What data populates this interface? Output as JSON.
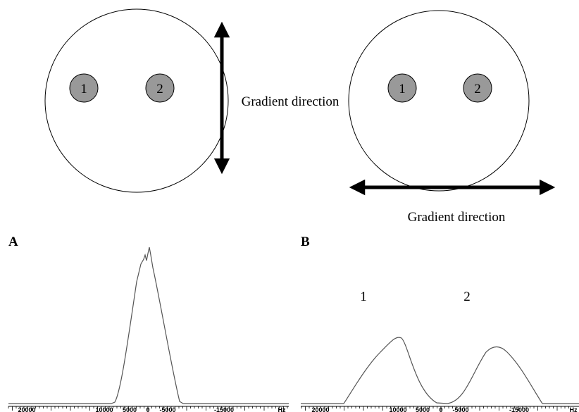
{
  "diagram": {
    "left": {
      "spots": [
        "1",
        "2"
      ],
      "gradient_label": "Gradient direction"
    },
    "right": {
      "spots": [
        "1",
        "2"
      ],
      "gradient_label": "Gradient direction"
    }
  },
  "spectra": {
    "A": {
      "label": "A",
      "ticks": [
        "20000",
        "10000",
        "5000",
        "0",
        "-5000",
        "-15000"
      ],
      "unit": "Hz"
    },
    "B": {
      "label": "B",
      "peak_labels": [
        "1",
        "2"
      ],
      "ticks": [
        "20000",
        "10000",
        "5000",
        "0",
        "-5000",
        "-15000"
      ],
      "unit": "Hz"
    }
  }
}
